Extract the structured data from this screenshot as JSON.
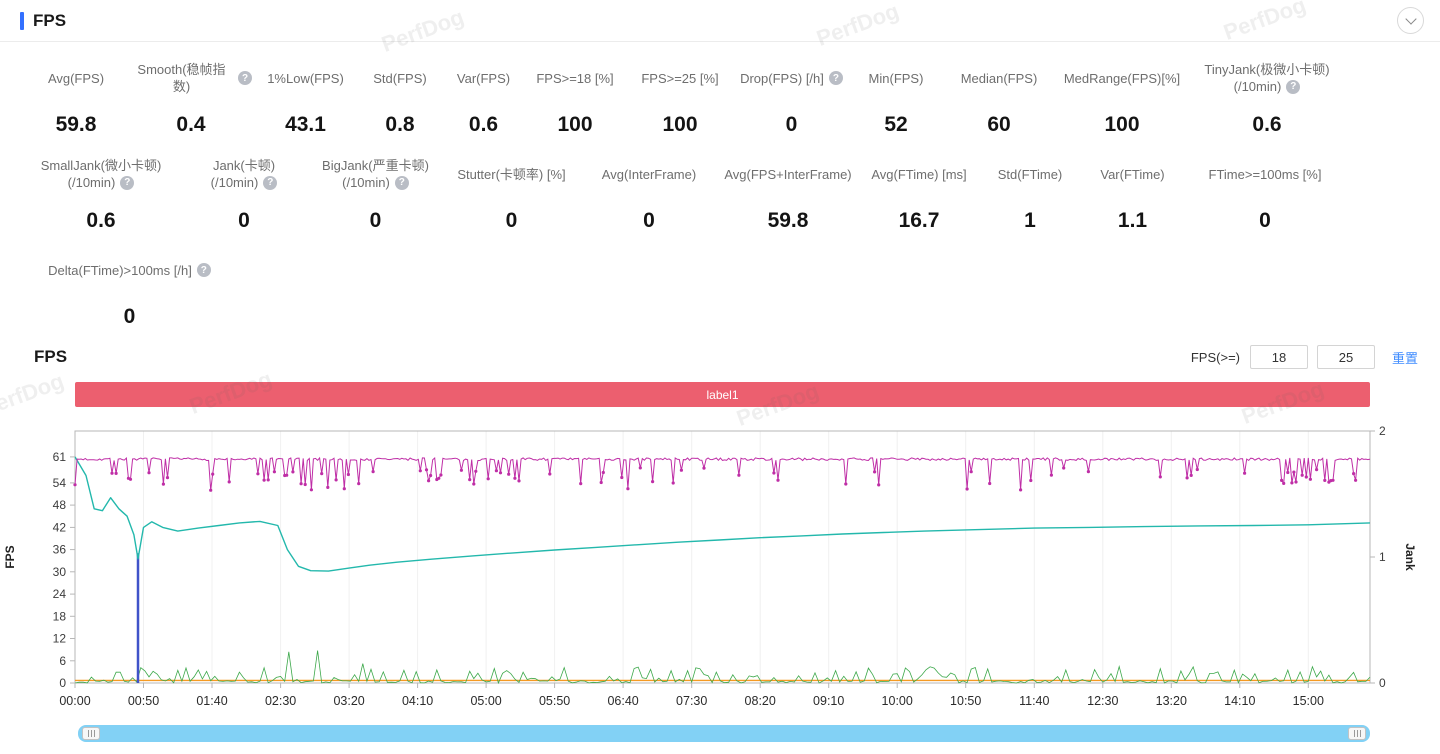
{
  "header": {
    "title": "FPS"
  },
  "icons": {
    "help_glyph": "?",
    "collapse": "chevron-down",
    "scroll_grip": "grip-lines"
  },
  "colors": {
    "accent": "#3370ff",
    "banner_red": "#ec5f6f",
    "link_blue": "#3f8cff",
    "scrollbar_blue": "#82d1f5"
  },
  "watermark_text": "PerfDog",
  "stats": {
    "row1": [
      {
        "id": "avg-fps",
        "label_lines": [
          "Avg(FPS)"
        ],
        "help": false,
        "value": "59.8"
      },
      {
        "id": "smooth",
        "label_lines": [
          "Smooth(稳帧指数)"
        ],
        "help": true,
        "value": "0.4"
      },
      {
        "id": "low1pct-fps",
        "label_lines": [
          "1%Low(FPS)"
        ],
        "help": false,
        "value": "43.1"
      },
      {
        "id": "std-fps",
        "label_lines": [
          "Std(FPS)"
        ],
        "help": false,
        "value": "0.8"
      },
      {
        "id": "var-fps",
        "label_lines": [
          "Var(FPS)"
        ],
        "help": false,
        "value": "0.6"
      },
      {
        "id": "fps-ge-18",
        "label_lines": [
          "FPS>=18 [%]"
        ],
        "help": false,
        "value": "100"
      },
      {
        "id": "fps-ge-25",
        "label_lines": [
          "FPS>=25 [%]"
        ],
        "help": false,
        "value": "100"
      },
      {
        "id": "drop-fps",
        "label_lines": [
          "Drop(FPS) [/h]"
        ],
        "help": true,
        "value": "0"
      },
      {
        "id": "min-fps",
        "label_lines": [
          "Min(FPS)"
        ],
        "help": false,
        "value": "52"
      },
      {
        "id": "median-fps",
        "label_lines": [
          "Median(FPS)"
        ],
        "help": false,
        "value": "60"
      },
      {
        "id": "medrange-fps",
        "label_lines": [
          "MedRange(FPS)[%]"
        ],
        "help": false,
        "value": "100"
      },
      {
        "id": "tinyjank",
        "label_lines": [
          "TinyJank(极微小卡顿)",
          "(/10min)"
        ],
        "help": true,
        "value": "0.6"
      }
    ],
    "row2": [
      {
        "id": "smalljank",
        "label_lines": [
          "SmallJank(微小卡顿)",
          "(/10min)"
        ],
        "help": true,
        "value": "0.6"
      },
      {
        "id": "jank",
        "label_lines": [
          "Jank(卡顿)",
          "(/10min)"
        ],
        "help": true,
        "value": "0"
      },
      {
        "id": "bigjank",
        "label_lines": [
          "BigJank(严重卡顿)",
          "(/10min)"
        ],
        "help": true,
        "value": "0"
      },
      {
        "id": "stutter",
        "label_lines": [
          "Stutter(卡顿率) [%]"
        ],
        "help": false,
        "value": "0"
      },
      {
        "id": "avg-interframe",
        "label_lines": [
          "Avg(InterFrame)"
        ],
        "help": false,
        "value": "0"
      },
      {
        "id": "avg-fps-interframe",
        "label_lines": [
          "Avg(FPS+InterFrame)"
        ],
        "help": false,
        "value": "59.8"
      },
      {
        "id": "avg-ftime",
        "label_lines": [
          "Avg(FTime) [ms]"
        ],
        "help": false,
        "value": "16.7"
      },
      {
        "id": "std-ftime",
        "label_lines": [
          "Std(FTime)"
        ],
        "help": false,
        "value": "1"
      },
      {
        "id": "var-ftime",
        "label_lines": [
          "Var(FTime)"
        ],
        "help": false,
        "value": "1.1"
      },
      {
        "id": "ftime-ge-100ms",
        "label_lines": [
          "FTime>=100ms [%]"
        ],
        "help": false,
        "value": "0"
      }
    ],
    "row3": [
      {
        "id": "delta-ftime",
        "label_lines": [
          "Delta(FTime)>100ms [/h]"
        ],
        "help": true,
        "value": "0"
      }
    ]
  },
  "chart_header": {
    "title": "FPS",
    "filter_label": "FPS(>=)",
    "fps_low": "18",
    "fps_high": "25",
    "reset_label": "重置",
    "banner_label": "label1"
  },
  "chart_data": {
    "type": "line",
    "title": "FPS",
    "x_axis": {
      "tick_labels": [
        "00:00",
        "00:50",
        "01:40",
        "02:30",
        "03:20",
        "04:10",
        "05:00",
        "05:50",
        "06:40",
        "07:30",
        "08:20",
        "09:10",
        "10:00",
        "10:50",
        "11:40",
        "12:30",
        "13:20",
        "14:10",
        "15:00"
      ],
      "tick_interval_seconds": 50,
      "domain_seconds": [
        0,
        945
      ]
    },
    "left_axis": {
      "label": "FPS",
      "ticks": [
        0,
        6,
        12,
        18,
        24,
        30,
        36,
        42,
        48,
        54,
        61
      ],
      "range": [
        0,
        68
      ]
    },
    "right_axis": {
      "label": "Jank",
      "ticks": [
        0,
        1,
        2
      ],
      "range": [
        0,
        2
      ]
    },
    "annotation": {
      "label": "label1",
      "color": "#ec5f6f"
    },
    "series": [
      {
        "name": "interframe-baseline",
        "color": "#f59a23",
        "axis": "left",
        "style": "flat-line",
        "value": 0.7
      },
      {
        "name": "jank-events",
        "color": "#3ca84a",
        "axis": "left",
        "style": "spikes",
        "sample_step_seconds": 3,
        "spike_probability": 0.5,
        "max_height": 4.5,
        "tall_cluster_windows_seconds": [
          [
            150,
            210
          ]
        ],
        "tall_max_height": 10,
        "seed": 13
      },
      {
        "name": "event-spike",
        "color": "#4053c9",
        "axis": "left",
        "style": "vertical-line",
        "x_seconds": 46,
        "value": 35
      },
      {
        "name": "fps-average-trend",
        "color": "#23b8ac",
        "axis": "left",
        "style": "smooth-line",
        "keypoints": [
          [
            0,
            61
          ],
          [
            8,
            56
          ],
          [
            14,
            47
          ],
          [
            20,
            46.5
          ],
          [
            26,
            50
          ],
          [
            32,
            47
          ],
          [
            38,
            45
          ],
          [
            43,
            40
          ],
          [
            46,
            33.5
          ],
          [
            50,
            42
          ],
          [
            56,
            43.5
          ],
          [
            64,
            42
          ],
          [
            75,
            41
          ],
          [
            90,
            41.8
          ],
          [
            105,
            42.5
          ],
          [
            120,
            43.2
          ],
          [
            135,
            43.6
          ],
          [
            148,
            42.5
          ],
          [
            155,
            36
          ],
          [
            163,
            31.5
          ],
          [
            172,
            30.3
          ],
          [
            185,
            30.2
          ],
          [
            200,
            31
          ],
          [
            215,
            31.8
          ],
          [
            235,
            32.6
          ],
          [
            260,
            33.4
          ],
          [
            290,
            34.3
          ],
          [
            320,
            35.1
          ],
          [
            350,
            35.9
          ],
          [
            380,
            36.6
          ],
          [
            410,
            37.3
          ],
          [
            440,
            38
          ],
          [
            470,
            38.6
          ],
          [
            500,
            39.2
          ],
          [
            530,
            39.7
          ],
          [
            560,
            40.2
          ],
          [
            590,
            40.6
          ],
          [
            620,
            41
          ],
          [
            660,
            41.4
          ],
          [
            700,
            41.8
          ],
          [
            740,
            42
          ],
          [
            780,
            42.2
          ],
          [
            820,
            42.4
          ],
          [
            860,
            42.5
          ],
          [
            900,
            42.7
          ],
          [
            945,
            43.2
          ]
        ]
      },
      {
        "name": "fps-realtime",
        "color": "#bf2ea6",
        "axis": "left",
        "style": "noisy-line-with-dots",
        "baseline": 60.4,
        "noise": 0.35,
        "sample_step_seconds": 1.5,
        "dip_probability": 0.1,
        "dip_depth_range": [
          2,
          7
        ],
        "deep_dip_probability": 0.012,
        "deep_dip_depth_range": [
          7,
          8.4
        ],
        "dip_cluster_windows_seconds": [
          [
            38,
            58
          ],
          [
            128,
            170
          ],
          [
            250,
            330
          ],
          [
            880,
            920
          ]
        ],
        "cluster_dip_probability": 0.35,
        "min_value": 52,
        "max_value": 61.5,
        "seed": 7
      }
    ]
  }
}
